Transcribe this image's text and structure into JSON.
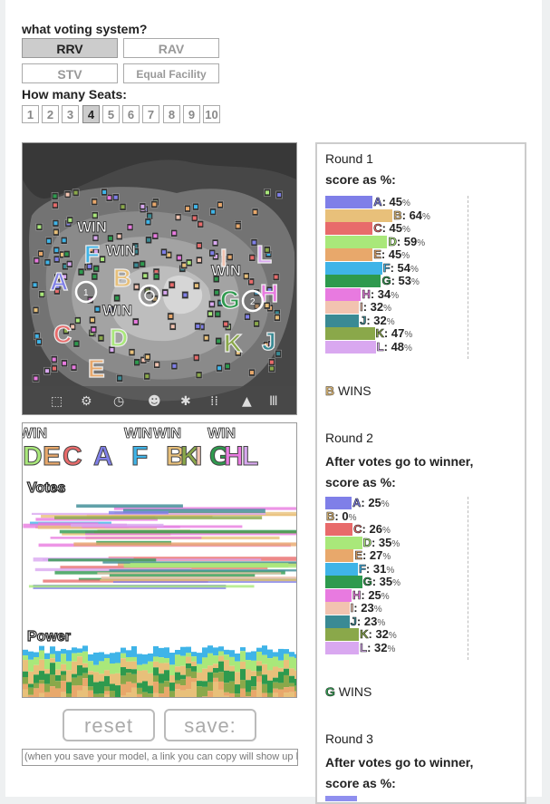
{
  "voting_question": "what voting system?",
  "systems": [
    {
      "label": "RRV",
      "selected": true
    },
    {
      "label": "RAV",
      "selected": false
    },
    {
      "label": "STV",
      "selected": false
    },
    {
      "label": "Equal Facility",
      "selected": false
    }
  ],
  "seats_question": "How many Seats:",
  "seats": [
    "1",
    "2",
    "3",
    "4",
    "5",
    "6",
    "7",
    "8",
    "9",
    "10"
  ],
  "selected_seats": "4",
  "sim_labels": {
    "win": "WIN",
    "votes": "Votes",
    "power": "Power"
  },
  "candidates": [
    {
      "id": "A",
      "color": "#7f7fe8"
    },
    {
      "id": "B",
      "color": "#e8c07a"
    },
    {
      "id": "C",
      "color": "#e86b6b"
    },
    {
      "id": "D",
      "color": "#a9e87a"
    },
    {
      "id": "E",
      "color": "#e8a86b"
    },
    {
      "id": "F",
      "color": "#3fb4e8"
    },
    {
      "id": "G",
      "color": "#2e9a4e"
    },
    {
      "id": "H",
      "color": "#e87ae0"
    },
    {
      "id": "I",
      "color": "#f2c3b0"
    },
    {
      "id": "J",
      "color": "#3a8a94"
    },
    {
      "id": "K",
      "color": "#8aa84a"
    },
    {
      "id": "L",
      "color": "#d9a8f0"
    }
  ],
  "win_order_strip": [
    "D",
    "E",
    "C",
    "A",
    "F",
    "B",
    "K",
    "I",
    "G",
    "H",
    "L"
  ],
  "buttons": {
    "reset": "reset",
    "save": "save:"
  },
  "save_placeholder": "(when you save your model, a link you can copy will show up here)",
  "rounds": [
    {
      "title": "Round 1",
      "subtitle": "score as %:",
      "scores": [
        45,
        64,
        45,
        59,
        45,
        54,
        53,
        34,
        32,
        32,
        47,
        48
      ],
      "winner": "B",
      "winner_text": "WINS"
    },
    {
      "title": "Round 2",
      "subtitle": "After votes go to winner, score as %:",
      "scores": [
        25,
        0,
        26,
        35,
        27,
        31,
        35,
        25,
        23,
        23,
        32,
        32
      ],
      "winner": "G",
      "winner_text": "WINS"
    },
    {
      "title": "Round 3",
      "subtitle": "After votes go to winner, score as %:"
    }
  ],
  "percent_sign": "%",
  "toolbar_icons": [
    "voter-icon",
    "gear-icon",
    "clock-icon",
    "face-icon",
    "crowd-icon",
    "grid-icon",
    "triangle-icon",
    "pillar-icon"
  ]
}
